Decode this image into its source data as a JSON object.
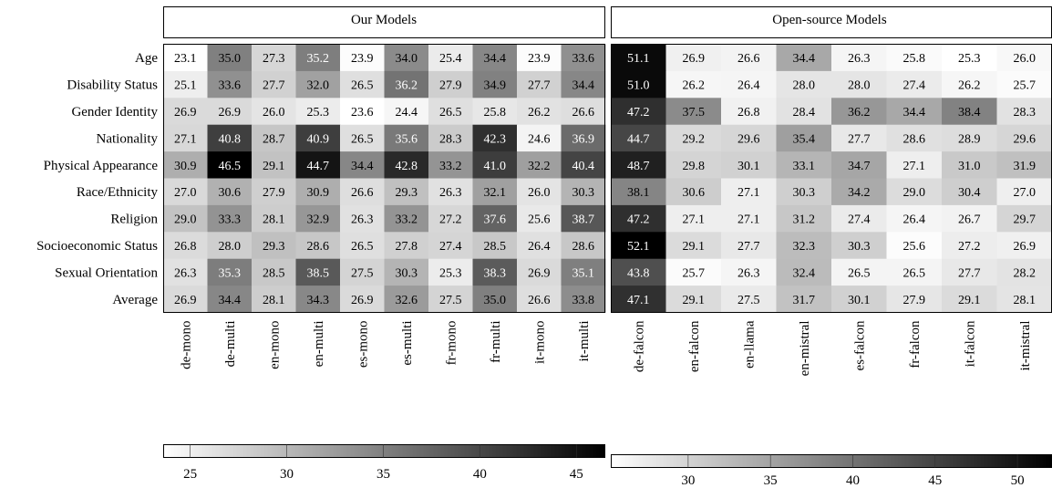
{
  "chart_data": [
    {
      "type": "heatmap",
      "title": "Our Models",
      "rows": [
        "Age",
        "Disability Status",
        "Gender Identity",
        "Nationality",
        "Physical Appearance",
        "Race/Ethnicity",
        "Religion",
        "Socioeconomic Status",
        "Sexual Orientation",
        "Average"
      ],
      "columns": [
        "de-mono",
        "de-multi",
        "en-mono",
        "en-multi",
        "es-mono",
        "es-multi",
        "fr-mono",
        "fr-multi",
        "it-mono",
        "it-multi"
      ],
      "values": [
        [
          23.1,
          35.0,
          27.3,
          35.2,
          23.9,
          34.0,
          25.4,
          34.4,
          23.9,
          33.6
        ],
        [
          25.1,
          33.6,
          27.7,
          32.0,
          26.5,
          36.2,
          27.9,
          34.9,
          27.7,
          34.4
        ],
        [
          26.9,
          26.9,
          26.0,
          25.3,
          23.6,
          24.4,
          26.5,
          25.8,
          26.2,
          26.6
        ],
        [
          27.1,
          40.8,
          28.7,
          40.9,
          26.5,
          35.6,
          28.3,
          42.3,
          24.6,
          36.9
        ],
        [
          30.9,
          46.5,
          29.1,
          44.7,
          34.4,
          42.8,
          33.2,
          41.0,
          32.2,
          40.4
        ],
        [
          27.0,
          30.6,
          27.9,
          30.9,
          26.6,
          29.3,
          26.3,
          32.1,
          26.0,
          30.3
        ],
        [
          29.0,
          33.3,
          28.1,
          32.9,
          26.3,
          33.2,
          27.2,
          37.6,
          25.6,
          38.7
        ],
        [
          26.8,
          28.0,
          29.3,
          28.6,
          26.5,
          27.8,
          27.4,
          28.5,
          26.4,
          28.6
        ],
        [
          26.3,
          35.3,
          28.5,
          38.5,
          27.5,
          30.3,
          25.3,
          38.3,
          26.9,
          35.1
        ],
        [
          26.9,
          34.4,
          28.1,
          34.3,
          26.9,
          32.6,
          27.5,
          35.0,
          26.6,
          33.8
        ]
      ],
      "value_labels": [
        [
          "23.1",
          "35.0",
          "27.3",
          "35.2",
          "23.9",
          "34.0",
          "25.4",
          "34.4",
          "23.9",
          "33.6"
        ],
        [
          "25.1",
          "33.6",
          "27.7",
          "32.0",
          "26.5",
          "36.2",
          "27.9",
          "34.9",
          "27.7",
          "34.4"
        ],
        [
          "26.9",
          "26.9",
          "26.0",
          "25.3",
          "23.6",
          "24.4",
          "26.5",
          "25.8",
          "26.2",
          "26.6"
        ],
        [
          "27.1",
          "40.8",
          "28.7",
          "40.9",
          "26.5",
          "35.6",
          "28.3",
          "42.3",
          "24.6",
          "36.9"
        ],
        [
          "30.9",
          "46.5",
          "29.1",
          "44.7",
          "34.4",
          "42.8",
          "33.2",
          "41.0",
          "32.2",
          "40.4"
        ],
        [
          "27.0",
          "30.6",
          "27.9",
          "30.9",
          "26.6",
          "29.3",
          "26.3",
          "32.1",
          "26.0",
          "30.3"
        ],
        [
          "29.0",
          "33.3",
          "28.1",
          "32.9",
          "26.3",
          "33.2",
          "27.2",
          "37.6",
          "25.6",
          "38.7"
        ],
        [
          "26.8",
          "28.0",
          "29.3",
          "28.6",
          "26.5",
          "27.8",
          "27.4",
          "28.5",
          "26.4",
          "28.6"
        ],
        [
          "26.3",
          "35.3",
          "28.5",
          "38.5",
          "27.5",
          "30.3",
          "25.3",
          "38.3",
          "26.9",
          "35.1"
        ],
        [
          "26.9",
          "34.4",
          "28.1",
          "34.3",
          "26.9",
          "32.6",
          "27.5",
          "35.0",
          "26.6",
          "33.8"
        ]
      ],
      "colorbar": {
        "range": [
          23.6,
          46.5
        ],
        "ticks": [
          25,
          30,
          35,
          40,
          45
        ],
        "colormap": "greys"
      },
      "grid": false
    },
    {
      "type": "heatmap",
      "title": "Open-source Models",
      "rows": [
        "Age",
        "Disability Status",
        "Gender Identity",
        "Nationality",
        "Physical Appearance",
        "Race/Ethnicity",
        "Religion",
        "Socioeconomic Status",
        "Sexual Orientation",
        "Average"
      ],
      "columns": [
        "de-falcon",
        "en-falcon",
        "en-llama",
        "en-mistral",
        "es-falcon",
        "fr-falcon",
        "it-falcon",
        "it-mistral"
      ],
      "values": [
        [
          51.1,
          26.9,
          26.6,
          34.4,
          26.3,
          25.8,
          25.3,
          26.0
        ],
        [
          51.0,
          26.2,
          26.4,
          28.0,
          28.0,
          27.4,
          26.2,
          25.7
        ],
        [
          47.2,
          37.5,
          26.8,
          28.4,
          36.2,
          34.4,
          38.4,
          28.3
        ],
        [
          44.7,
          29.2,
          29.6,
          35.4,
          27.7,
          28.6,
          28.9,
          29.6
        ],
        [
          48.7,
          29.8,
          30.1,
          33.1,
          34.7,
          27.1,
          31.0,
          31.9
        ],
        [
          38.1,
          30.6,
          27.1,
          30.3,
          34.2,
          29.0,
          30.4,
          27.0
        ],
        [
          47.2,
          27.1,
          27.1,
          31.2,
          27.4,
          26.4,
          26.7,
          29.7
        ],
        [
          52.1,
          29.1,
          27.7,
          32.3,
          30.3,
          25.6,
          27.2,
          26.9
        ],
        [
          43.8,
          25.7,
          26.3,
          32.4,
          26.5,
          26.5,
          27.7,
          28.2
        ],
        [
          47.1,
          29.1,
          27.5,
          31.7,
          30.1,
          27.9,
          29.1,
          28.1
        ]
      ],
      "value_labels": [
        [
          "51.1",
          "26.9",
          "26.6",
          "34.4",
          "26.3",
          "25.8",
          "25.3",
          "26.0"
        ],
        [
          "51.0",
          "26.2",
          "26.4",
          "28.0",
          "28.0",
          "27.4",
          "26.2",
          "25.7"
        ],
        [
          "47.2",
          "37.5",
          "26.8",
          "28.4",
          "36.2",
          "34.4",
          "38.4",
          "28.3"
        ],
        [
          "44.7",
          "29.2",
          "29.6",
          "35.4",
          "27.7",
          "28.6",
          "28.9",
          "29.6"
        ],
        [
          "48.7",
          "29.8",
          "30.1",
          "33.1",
          "34.7",
          "27.1",
          "31.0",
          "31.9"
        ],
        [
          "38.1",
          "30.6",
          "27.1",
          "30.3",
          "34.2",
          "29.0",
          "30.4",
          "27.0"
        ],
        [
          "47.2",
          "27.1",
          "27.1",
          "31.2",
          "27.4",
          "26.4",
          "26.7",
          "29.7"
        ],
        [
          "52.1",
          "29.1",
          "27.7",
          "32.3",
          "30.3",
          "25.6",
          "27.2",
          "26.9"
        ],
        [
          "43.8",
          "25.7",
          "26.3",
          "32.4",
          "26.5",
          "26.5",
          "27.7",
          "28.2"
        ],
        [
          "47.1",
          "29.1",
          "27.5",
          "31.7",
          "30.1",
          "27.9",
          "29.1",
          "28.1"
        ]
      ],
      "colorbar": {
        "range": [
          25.3,
          52.1
        ],
        "ticks": [
          30,
          35,
          40,
          45,
          50
        ],
        "colormap": "greys"
      },
      "grid": false
    }
  ]
}
